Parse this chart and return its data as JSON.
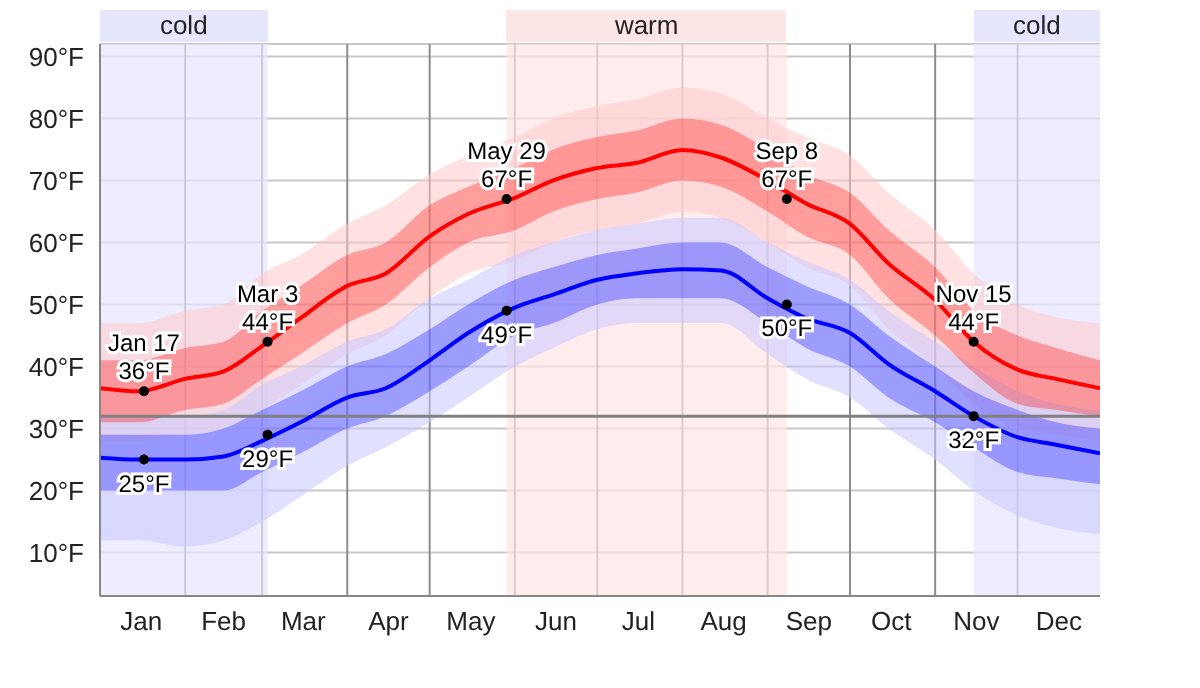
{
  "chart_data": {
    "type": "line",
    "x": [
      "--01-01",
      "--01-15",
      "--02-01",
      "--02-15",
      "--03-01",
      "--03-15",
      "--04-01",
      "--04-15",
      "--05-01",
      "--05-15",
      "--06-01",
      "--06-15",
      "--07-01",
      "--07-15",
      "--08-01",
      "--08-15",
      "--09-01",
      "--09-15",
      "--10-01",
      "--10-15",
      "--11-01",
      "--11-15",
      "--12-01",
      "--12-15",
      "--12-31"
    ],
    "series": [
      {
        "type": "area",
        "color": "#ffc8c8",
        "values": [
          null,
          null,
          null,
          null,
          null,
          null,
          null,
          null,
          null,
          null,
          null,
          null,
          null,
          null,
          null,
          null,
          null,
          null,
          null,
          null,
          null,
          null,
          null,
          null,
          null
        ],
        "lower": [
          28,
          28,
          29,
          30,
          33,
          37,
          42,
          45,
          51,
          55,
          57,
          60,
          62,
          63,
          65,
          64,
          60,
          56,
          53,
          46,
          40,
          34,
          30,
          29,
          28
        ],
        "upper": [
          47,
          47,
          49,
          50,
          55,
          58,
          63,
          66,
          71,
          74,
          77,
          80,
          82,
          83,
          85,
          84,
          80,
          77,
          74,
          68,
          62,
          55,
          50,
          48,
          47
        ]
      },
      {
        "type": "area",
        "color": "#c8c8ff",
        "values": [
          null,
          null,
          null,
          null,
          null,
          null,
          null,
          null,
          null,
          null,
          null,
          null,
          null,
          null,
          null,
          null,
          null,
          null,
          null,
          null,
          null,
          null,
          null,
          null,
          null
        ],
        "lower": [
          12,
          12,
          11,
          12,
          15,
          19,
          24,
          27,
          31,
          35,
          40,
          43,
          46,
          47,
          47,
          47,
          42,
          38,
          35,
          30,
          25,
          20,
          16,
          14,
          13
        ],
        "upper": [
          32,
          32,
          32,
          33,
          37,
          40,
          44,
          46,
          51,
          54,
          58,
          60,
          62,
          63,
          64,
          64,
          60,
          57,
          54,
          49,
          44,
          40,
          36,
          34,
          33
        ]
      },
      {
        "type": "line",
        "color": "#ff0000",
        "values": [
          36.5,
          36,
          38,
          39.2,
          43.3,
          47.8,
          53,
          55,
          61,
          64.6,
          67.2,
          70,
          72,
          72.8,
          74.9,
          73.7,
          70,
          66.3,
          63,
          56.6,
          50.7,
          44,
          39.5,
          38,
          36.5
        ],
        "lower": [
          31,
          31,
          33,
          34,
          38,
          42,
          47,
          50,
          56,
          60,
          62,
          65,
          67,
          68,
          70,
          69,
          65,
          61,
          58,
          51,
          45,
          39,
          34,
          33,
          32
        ],
        "upper": [
          41,
          41,
          43,
          44,
          49,
          53,
          58,
          60,
          66,
          69,
          72,
          75,
          77,
          78,
          80,
          79,
          75,
          71,
          68,
          62,
          56,
          49,
          45,
          43,
          41
        ]
      },
      {
        "type": "line",
        "color": "#0000ff",
        "values": [
          25.3,
          25,
          25,
          25.5,
          28,
          31,
          35,
          36.5,
          41,
          45.4,
          49.5,
          51.6,
          54,
          55,
          55.7,
          55.5,
          51,
          47.8,
          45.4,
          40.4,
          36,
          32,
          28.6,
          27.4,
          26
        ],
        "lower": [
          20,
          20,
          20,
          20,
          23,
          26,
          30,
          32,
          36,
          40,
          45,
          47,
          50,
          51,
          51,
          51,
          47,
          43,
          40,
          35,
          31,
          27,
          23,
          22,
          21
        ],
        "upper": [
          29,
          29,
          29,
          30,
          33,
          36,
          40,
          42,
          46,
          50,
          54,
          56,
          58,
          59,
          60,
          60,
          56,
          53,
          50,
          45,
          40,
          36,
          33,
          31,
          30
        ]
      }
    ],
    "xlim": [
      "--01-01",
      "--12-31"
    ],
    "xticks": [
      {
        "value": "--01-01",
        "label": null
      },
      {
        "value": "--01-16",
        "label": "Jan"
      },
      {
        "value": "--02-01",
        "label": null
      },
      {
        "value": "--02-15",
        "label": "Feb"
      },
      {
        "value": "--03-01",
        "label": null
      },
      {
        "value": "--03-16",
        "label": "Mar"
      },
      {
        "value": "--04-01",
        "label": null
      },
      {
        "value": "--04-16",
        "label": "Apr"
      },
      {
        "value": "--05-01",
        "label": null
      },
      {
        "value": "--05-16",
        "label": "May"
      },
      {
        "value": "--06-01",
        "label": null
      },
      {
        "value": "--06-16",
        "label": "Jun"
      },
      {
        "value": "--07-01",
        "label": null
      },
      {
        "value": "--07-16",
        "label": "Jul"
      },
      {
        "value": "--08-01",
        "label": null
      },
      {
        "value": "--08-16",
        "label": "Aug"
      },
      {
        "value": "--09-01",
        "label": null
      },
      {
        "value": "--09-16",
        "label": "Sep"
      },
      {
        "value": "--10-01",
        "label": null
      },
      {
        "value": "--10-16",
        "label": "Oct"
      },
      {
        "value": "--11-01",
        "label": null
      },
      {
        "value": "--11-16",
        "label": "Nov"
      },
      {
        "value": "--12-01",
        "label": null
      },
      {
        "value": "--12-16",
        "label": "Dec"
      }
    ],
    "ylim": [
      3,
      92
    ],
    "yticks": [
      {
        "value": 10,
        "label": "10°F"
      },
      {
        "value": 20,
        "label": "20°F"
      },
      {
        "value": 30,
        "label": "30°F"
      },
      {
        "value": 40,
        "label": "40°F"
      },
      {
        "value": 50,
        "label": "50°F"
      },
      {
        "value": 60,
        "label": "60°F"
      },
      {
        "value": 70,
        "label": "70°F"
      },
      {
        "value": 80,
        "label": "80°F"
      },
      {
        "value": 90,
        "label": "90°F"
      }
    ],
    "grid": true,
    "ref_lines": [
      {
        "axis": "y",
        "value": 32,
        "label": null,
        "color": "#808080"
      }
    ],
    "bands": [
      {
        "axis": "x",
        "from": "--01-01",
        "to": "--03-03",
        "label": "cold",
        "color": "#e6e6ff"
      },
      {
        "axis": "x",
        "from": "--05-29",
        "to": "--09-08",
        "label": "warm",
        "color": "#ffe6e6"
      },
      {
        "axis": "x",
        "from": "--11-15",
        "to": "--12-31",
        "label": "cold",
        "color": "#e6e6ff"
      }
    ],
    "annotations": [
      {
        "text": "Jan 17\n36°F",
        "x": "--01-17",
        "y": 36
      },
      {
        "text": "25°F",
        "x": "--01-17",
        "y": 25
      },
      {
        "text": "Mar 3\n44°F",
        "x": "--03-03",
        "y": 44
      },
      {
        "text": "29°F",
        "x": "--03-03",
        "y": 29
      },
      {
        "text": "May 29\n67°F",
        "x": "--05-29",
        "y": 67
      },
      {
        "text": "49°F",
        "x": "--05-29",
        "y": 49
      },
      {
        "text": "Sep 8\n67°F",
        "x": "--09-08",
        "y": 67
      },
      {
        "text": "50°F",
        "x": "--09-08",
        "y": 50
      },
      {
        "text": "Nov 15\n44°F",
        "x": "--11-15",
        "y": 44
      },
      {
        "text": "32°F",
        "x": "--11-15",
        "y": 32
      }
    ]
  }
}
